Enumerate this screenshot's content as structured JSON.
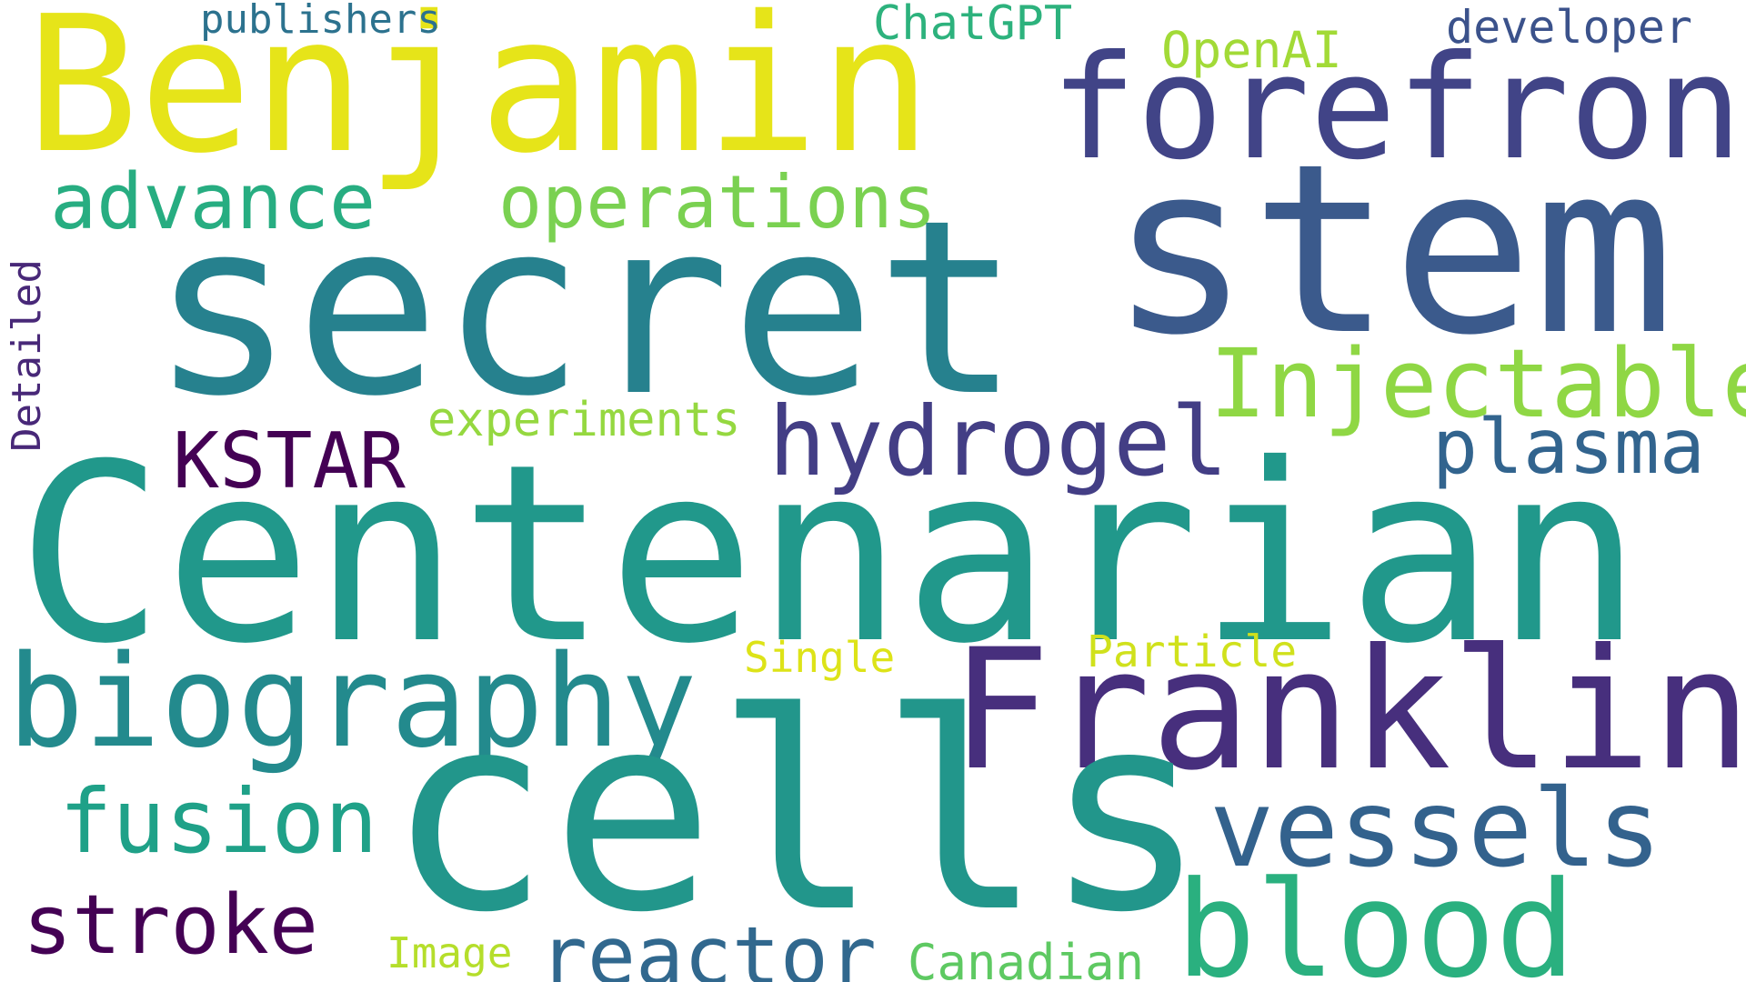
{
  "words": {
    "benjamin": {
      "text": "Benjamin",
      "color": "#e6e419"
    },
    "secret": {
      "text": "secret",
      "color": "#26818e"
    },
    "stem": {
      "text": "stem",
      "color": "#3b5a8c"
    },
    "centenarian": {
      "text": "Centenarian",
      "color": "#21988b"
    },
    "franklin": {
      "text": "Franklin",
      "color": "#472f7d"
    },
    "cells": {
      "text": "cells",
      "color": "#22968b"
    },
    "forefront": {
      "text": "forefront",
      "color": "#414487"
    },
    "biography": {
      "text": "biography",
      "color": "#238a8d"
    },
    "vessels": {
      "text": "vessels",
      "color": "#33628d"
    },
    "blood": {
      "text": "blood",
      "color": "#2ab07f"
    },
    "injectable": {
      "text": "Injectable",
      "color": "#8fd744"
    },
    "hydrogel": {
      "text": "hydrogel",
      "color": "#433e85"
    },
    "operations": {
      "text": "operations",
      "color": "#7ad151"
    },
    "advance": {
      "text": "advance",
      "color": "#27ad81"
    },
    "reactor": {
      "text": "reactor",
      "color": "#31688e"
    },
    "fusion": {
      "text": "fusion",
      "color": "#1fa188"
    },
    "stroke": {
      "text": "stroke",
      "color": "#440154"
    },
    "kstar": {
      "text": "KSTAR",
      "color": "#440154"
    },
    "plasma": {
      "text": "plasma",
      "color": "#32648e"
    },
    "developer": {
      "text": "developer",
      "color": "#3b528b"
    },
    "chatgpt": {
      "text": "ChatGPT",
      "color": "#2db27d"
    },
    "openai": {
      "text": "OpenAI",
      "color": "#a2da37"
    },
    "publishers": {
      "text": "publishers",
      "color": "#2c728e"
    },
    "experiments": {
      "text": "experiments",
      "color": "#95d840"
    },
    "canadian": {
      "text": "Canadian",
      "color": "#5ec962"
    },
    "single": {
      "text": "Single",
      "color": "#dde318"
    },
    "particle": {
      "text": "Particle",
      "color": "#d0e11c"
    },
    "image": {
      "text": "Image",
      "color": "#b5de2b"
    },
    "detailed": {
      "text": "Detailed",
      "color": "#482878"
    }
  }
}
